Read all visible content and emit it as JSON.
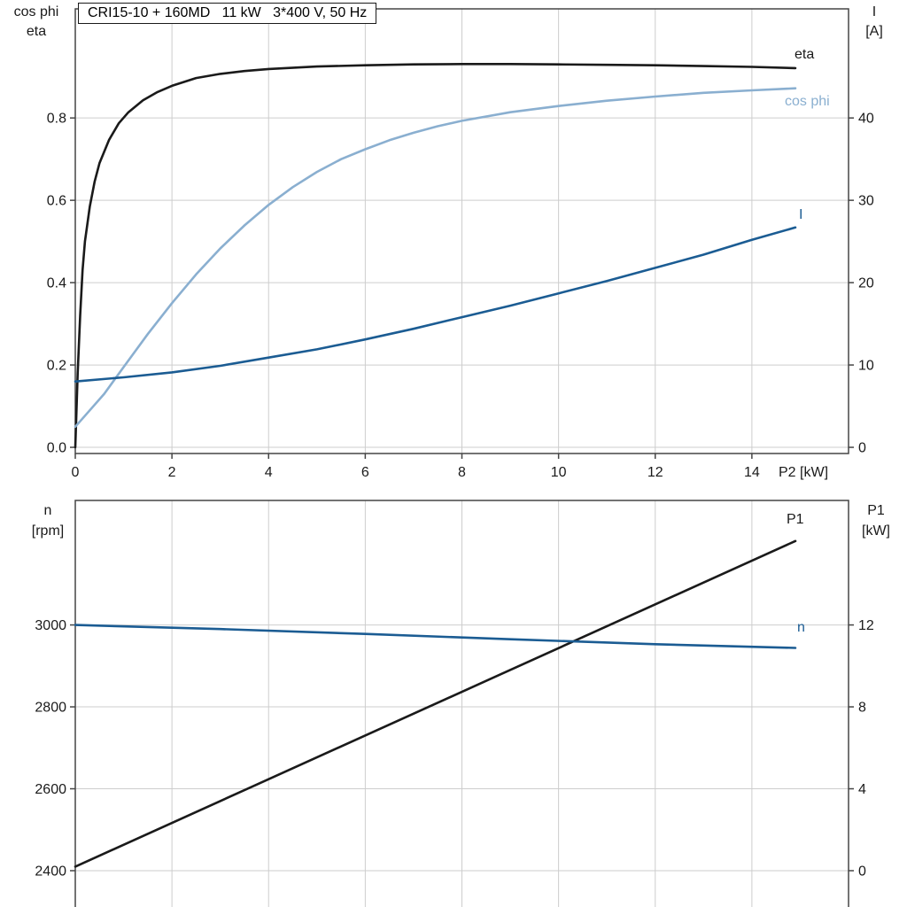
{
  "colors": {
    "black": "#1a1a1a",
    "dark_blue": "#1b5c93",
    "light_blue": "#8aafd0",
    "grid": "#cdcdcd",
    "axis": "#454545"
  },
  "labels": {
    "top_left_1": "cos phi",
    "top_left_2": "eta",
    "top_right_1": "I",
    "top_right_2": "[A]",
    "x_unit": "P2 [kW]",
    "curve_eta": "eta",
    "curve_cosphi": "cos phi",
    "curve_I": "I",
    "bottom_left_1": "n",
    "bottom_left_2": "[rpm]",
    "bottom_right_1": "P1",
    "bottom_right_2": "[kW]",
    "curve_P1": "P1",
    "curve_n": "n"
  },
  "chart_data": [
    {
      "type": "line",
      "title": "CRI15-10 + 160MD   11 kW   3*400 V, 50 Hz",
      "x": {
        "label": "P2 [kW]",
        "range": [
          0,
          16
        ],
        "tick_values": [
          0,
          2,
          4,
          6,
          8,
          10,
          12,
          14
        ],
        "tick_labels": [
          "0",
          "2",
          "4",
          "6",
          "8",
          "10",
          "12",
          "14"
        ]
      },
      "y_left": {
        "label": "cos phi / eta",
        "range": [
          -0.015,
          1.065
        ],
        "tick_values": [
          0,
          0.2,
          0.4,
          0.6,
          0.8
        ],
        "tick_labels": [
          "0.0",
          "0.2",
          "0.4",
          "0.6",
          "0.8"
        ]
      },
      "y_right": {
        "label": "I [A]",
        "range": [
          -0.75,
          53.25
        ],
        "tick_values": [
          0,
          10,
          20,
          30,
          40
        ],
        "tick_labels": [
          "0",
          "10",
          "20",
          "30",
          "40"
        ]
      },
      "grid": true,
      "legend_position": "inline-right",
      "series": [
        {
          "name": "eta",
          "axis": "left",
          "color_key": "black",
          "points": [
            [
              0,
              0
            ],
            [
              0.05,
              0.18
            ],
            [
              0.1,
              0.32
            ],
            [
              0.15,
              0.43
            ],
            [
              0.2,
              0.5
            ],
            [
              0.3,
              0.585
            ],
            [
              0.4,
              0.645
            ],
            [
              0.5,
              0.69
            ],
            [
              0.7,
              0.747
            ],
            [
              0.9,
              0.787
            ],
            [
              1.1,
              0.814
            ],
            [
              1.4,
              0.843
            ],
            [
              1.7,
              0.863
            ],
            [
              2,
              0.878
            ],
            [
              2.5,
              0.897
            ],
            [
              3,
              0.907
            ],
            [
              3.5,
              0.914
            ],
            [
              4,
              0.919
            ],
            [
              5,
              0.925
            ],
            [
              6,
              0.928
            ],
            [
              7,
              0.93
            ],
            [
              8,
              0.931
            ],
            [
              9,
              0.931
            ],
            [
              10,
              0.93
            ],
            [
              11,
              0.929
            ],
            [
              12,
              0.928
            ],
            [
              13,
              0.926
            ],
            [
              14,
              0.924
            ],
            [
              14.9,
              0.921
            ]
          ]
        },
        {
          "name": "cos phi",
          "axis": "left",
          "color_key": "light_blue",
          "points": [
            [
              0,
              0.05
            ],
            [
              0.3,
              0.09
            ],
            [
              0.6,
              0.13
            ],
            [
              1,
              0.195
            ],
            [
              1.5,
              0.275
            ],
            [
              2,
              0.35
            ],
            [
              2.5,
              0.42
            ],
            [
              3,
              0.483
            ],
            [
              3.5,
              0.539
            ],
            [
              4,
              0.589
            ],
            [
              4.5,
              0.632
            ],
            [
              5,
              0.669
            ],
            [
              5.5,
              0.7
            ],
            [
              6,
              0.724
            ],
            [
              6.5,
              0.746
            ],
            [
              7,
              0.764
            ],
            [
              7.5,
              0.78
            ],
            [
              8,
              0.793
            ],
            [
              9,
              0.814
            ],
            [
              10,
              0.829
            ],
            [
              11,
              0.842
            ],
            [
              12,
              0.852
            ],
            [
              13,
              0.861
            ],
            [
              14,
              0.867
            ],
            [
              14.9,
              0.872
            ]
          ]
        },
        {
          "name": "I",
          "axis": "right",
          "color_key": "dark_blue",
          "points": [
            [
              0,
              8
            ],
            [
              1,
              8.5
            ],
            [
              2,
              9.1
            ],
            [
              3,
              9.9
            ],
            [
              4,
              10.9
            ],
            [
              5,
              11.9
            ],
            [
              6,
              13.1
            ],
            [
              7,
              14.4
            ],
            [
              8,
              15.8
            ],
            [
              9,
              17.2
            ],
            [
              10,
              18.7
            ],
            [
              11,
              20.2
            ],
            [
              12,
              21.8
            ],
            [
              13,
              23.4
            ],
            [
              14,
              25.2
            ],
            [
              14.9,
              26.7
            ]
          ]
        }
      ]
    },
    {
      "type": "line",
      "title": "",
      "x": {
        "label": "",
        "range": [
          0,
          16
        ],
        "tick_values": [
          0,
          2,
          4,
          6,
          8,
          10,
          12,
          14
        ],
        "tick_labels": []
      },
      "y_left": {
        "label": "n [rpm]",
        "range": [
          2307,
          3304
        ],
        "tick_values": [
          2400,
          2600,
          2800,
          3000
        ],
        "tick_labels": [
          "2400",
          "2600",
          "2800",
          "3000"
        ]
      },
      "y_right": {
        "label": "P1 [kW]",
        "range": [
          -1.86,
          18.08
        ],
        "tick_values": [
          0,
          4,
          8,
          12
        ],
        "tick_labels": [
          "0",
          "4",
          "8",
          "12"
        ]
      },
      "grid": true,
      "legend_position": "inline-right",
      "series": [
        {
          "name": "P1",
          "axis": "right",
          "color_key": "black",
          "points": [
            [
              0,
              0.2
            ],
            [
              14.9,
              16.1
            ]
          ]
        },
        {
          "name": "n",
          "axis": "left",
          "color_key": "dark_blue",
          "points": [
            [
              0,
              3000
            ],
            [
              3,
              2990
            ],
            [
              6,
              2978
            ],
            [
              9,
              2965
            ],
            [
              12,
              2953
            ],
            [
              14.9,
              2944
            ]
          ]
        }
      ]
    }
  ]
}
